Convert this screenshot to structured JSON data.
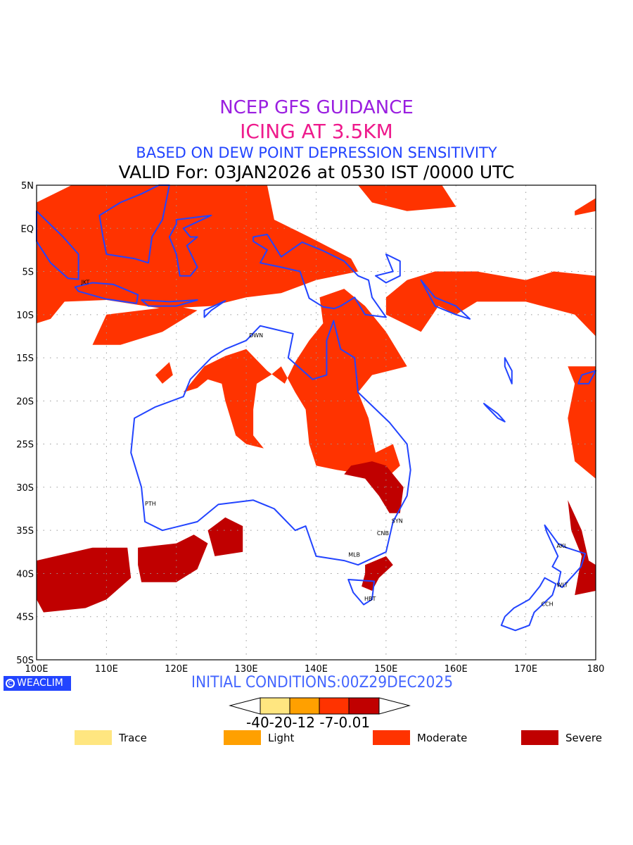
{
  "titles": {
    "line1": "NCEP GFS GUIDANCE",
    "line2": "ICING AT 3.5KM",
    "line3": "BASED ON DEW POINT DEPRESSION SENSITIVITY",
    "line4": "VALID For: 03JAN2026 at 0530 IST /0000 UTC"
  },
  "map": {
    "lat_labels": [
      "5N",
      "EQ",
      "5S",
      "10S",
      "15S",
      "20S",
      "25S",
      "30S",
      "35S",
      "40S",
      "45S",
      "50S"
    ],
    "lon_labels": [
      "100E",
      "110E",
      "120E",
      "130E",
      "140E",
      "150E",
      "160E",
      "170E",
      "180"
    ],
    "cities": [
      "JKT",
      "DWN",
      "PTH",
      "SYN",
      "CNB",
      "MLB",
      "HBT",
      "AKL",
      "WLT",
      "CCH"
    ],
    "colors": {
      "coast": "#2244ff",
      "moderate": "#ff3300",
      "severe": "#c00000"
    }
  },
  "footer": {
    "logo": "WEACLIM",
    "initial_conditions": "INITIAL CONDITIONS:00Z29DEC2025",
    "colorbar_labels": "-40-20-12 -7-0.01",
    "colorbar_colors": [
      "#ffe680",
      "#ffa000",
      "#ff3300",
      "#c00000"
    ]
  },
  "legend": [
    {
      "label": "Trace",
      "color": "#ffe680"
    },
    {
      "label": "Light",
      "color": "#ffa000"
    },
    {
      "label": "Moderate",
      "color": "#ff3300"
    },
    {
      "label": "Severe",
      "color": "#c00000"
    }
  ]
}
